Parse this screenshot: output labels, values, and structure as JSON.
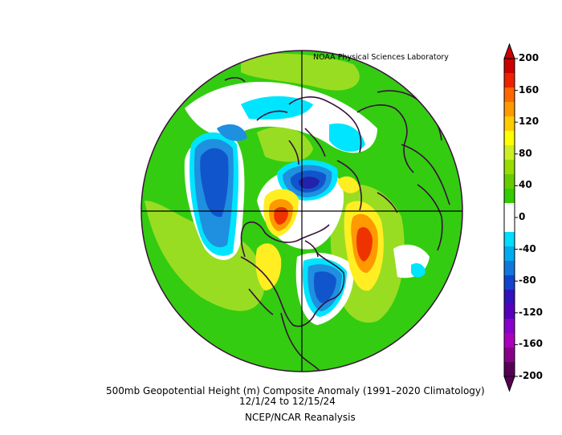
{
  "credit": "NOAA Physical Sciences Laboratory",
  "caption": {
    "line1": "500mb Geopotential Height (m) Composite Anomaly (1991–2020 Climatology)",
    "line2": "12/1/24   to 12/15/24",
    "line3": "NCEP/NCAR Reanalysis"
  },
  "colorbar": {
    "labels": [
      "200",
      "160",
      "120",
      "80",
      "40",
      "0",
      "-40",
      "-80",
      "-120",
      "-160",
      "-200"
    ],
    "colors": [
      "#cc0000",
      "#ee2200",
      "#ff6600",
      "#ff9900",
      "#ffcc00",
      "#ffff00",
      "#ccee22",
      "#99dd00",
      "#66cc00",
      "#33cc00",
      "#ffffff",
      "#ffffff",
      "#00ddff",
      "#00aaee",
      "#1177dd",
      "#1144cc",
      "#3311bb",
      "#5500bb",
      "#8800cc",
      "#aa00bb",
      "#880088",
      "#550055"
    ]
  },
  "colors": {
    "border": "#3a0f3a",
    "green": "#33cc11",
    "lightgreen": "#99dd22",
    "yellow": "#ffee22",
    "orange": "#ff9900",
    "red": "#ee3300",
    "cyan": "#00e5ff",
    "lightblue": "#1f8fe0",
    "blue": "#1155cc",
    "darkblue": "#2222aa"
  }
}
